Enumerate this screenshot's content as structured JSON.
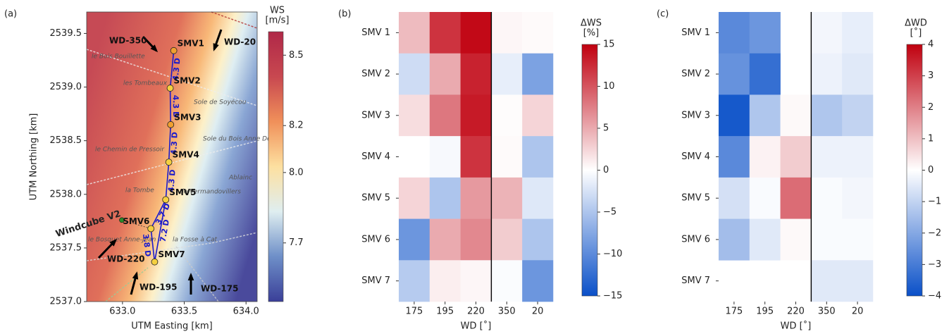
{
  "chart_data": [
    {
      "type": "map",
      "panel": "(a)",
      "xlabel": "UTM Easting [km]",
      "ylabel": "UTM Northing [km]",
      "xlim": [
        632.71,
        634.09
      ],
      "ylim": [
        2537.0,
        2539.7
      ],
      "xticks": [
        {
          "value": 633,
          "label": "633.0"
        },
        633.5,
        {
          "value": 634,
          "label": "634.0"
        }
      ],
      "yticks": [
        {
          "value": 2537,
          "label": "2537.0"
        },
        2537.5,
        {
          "value": 2538,
          "label": "2538.0"
        },
        2538.5,
        {
          "value": 2539,
          "label": "2539.0"
        },
        2539.5
      ],
      "turbines": {
        "names": [
          "SMV1",
          "SMV2",
          "SMV3",
          "SMV4",
          "SMV5",
          "SMV6",
          "SMV7"
        ],
        "x": [
          633.415,
          633.386,
          633.39,
          633.375,
          633.35,
          633.23,
          633.26
        ],
        "y": [
          2539.34,
          2538.99,
          2538.65,
          2538.3,
          2537.95,
          2537.68,
          2537.37
        ],
        "colors": [
          "#f0a030",
          "#f5d040",
          "#f0a030",
          "#f5d040",
          "#f5d040",
          "#f5d040",
          "#f5d040"
        ]
      },
      "lidar": {
        "name": "Windcube V2",
        "x": 632.995,
        "y": 2537.76,
        "color": "#2a8a2a"
      },
      "distances": [
        "4.3 D",
        "4.3 D",
        "4.3 D",
        "4.3 D",
        "3.7 D",
        "7.2 D",
        "3.8 D"
      ],
      "arrows": [
        "WD-350",
        "WD-20",
        "WD-220",
        "WD-195",
        "WD-175"
      ],
      "places": [
        "le Bois Bouillette",
        "les Tombeaux",
        "Sole de Soyécou",
        "Sole du Bois Anne Dege",
        "le Chemin de Pressoir",
        "Ablainc",
        "la Tombe",
        "de Vermandovillers",
        "le Bosquet Anne-Jean",
        "la Fosse à Cat"
      ],
      "colorbar": {
        "title": "WS",
        "unit": "[m/s]",
        "lim": [
          7.45,
          8.6
        ],
        "colors": [
          "#3a3f98",
          "#6e8fc8",
          "#dfeef0",
          "#fde0a0",
          "#f0905a",
          "#c84850",
          "#b02848"
        ],
        "ticks": [
          8.5,
          8.2,
          {
            "value": 8,
            "label": "8.0"
          },
          7.7
        ]
      }
    },
    {
      "type": "heatmap",
      "panel": "(b)",
      "xlabel": "WD [˚]",
      "categories": [
        "175",
        "195",
        "220",
        "350",
        "20"
      ],
      "rows": [
        "SMV 1",
        "SMV 2",
        "SMV 3",
        "SMV 4",
        "SMV 5",
        "SMV 6",
        "SMV 7"
      ],
      "values": [
        [
          4,
          12,
          14.5,
          0.5,
          0.3
        ],
        [
          -3,
          5,
          13,
          -1.5,
          -8
        ],
        [
          2,
          8,
          13.5,
          0.2,
          2.5
        ],
        [
          0,
          -0.5,
          12,
          0.3,
          -5
        ],
        [
          2.5,
          -5,
          6,
          4.5,
          -2
        ],
        [
          -9,
          5,
          7,
          3,
          -5
        ],
        [
          -4.5,
          1,
          0.5,
          -0.3,
          -9
        ]
      ],
      "colorbar": {
        "title": "ΔWS",
        "unit": "[%]",
        "lim": [
          -15,
          15
        ],
        "colors": [
          "#0a50c8",
          "#ffffff",
          "#c0000f"
        ],
        "ticks": [
          15,
          10,
          5,
          0,
          {
            "value": -5,
            "label": "−5"
          },
          {
            "value": -10,
            "label": "−10"
          },
          {
            "value": -15,
            "label": "−15"
          }
        ]
      }
    },
    {
      "type": "heatmap",
      "panel": "(c)",
      "xlabel": "WD [˚]",
      "categories": [
        "175",
        "195",
        "220",
        "350",
        "20"
      ],
      "rows": [
        "SMV 1",
        "SMV 2",
        "SMV 3",
        "SMV 4",
        "SMV 5",
        "SMV 6",
        "SMV 7"
      ],
      "values": [
        [
          -2.7,
          -2.4,
          null,
          -0.2,
          -0.4
        ],
        [
          -2.5,
          -3.3,
          null,
          -0.3,
          -0.5
        ],
        [
          -3.8,
          -1.3,
          0.1,
          -1.3,
          -1.0
        ],
        [
          -2.7,
          0.2,
          0.8,
          -0.3,
          -0.3
        ],
        [
          -0.7,
          -0.1,
          2.3,
          -0.1,
          -0.2
        ],
        [
          -1.5,
          -0.5,
          0.1,
          -0.1,
          -0.1
        ],
        [
          null,
          null,
          null,
          -0.5,
          -0.5
        ]
      ],
      "colorbar": {
        "title": "ΔWD",
        "unit": "[˚]",
        "lim": [
          -4,
          4
        ],
        "colors": [
          "#0a50c8",
          "#ffffff",
          "#c0000f"
        ],
        "ticks": [
          4,
          3,
          2,
          1,
          0,
          {
            "value": -1,
            "label": "−1"
          },
          {
            "value": -2,
            "label": "−2"
          },
          {
            "value": -3,
            "label": "−3"
          },
          {
            "value": -4,
            "label": "−4"
          }
        ]
      }
    }
  ]
}
